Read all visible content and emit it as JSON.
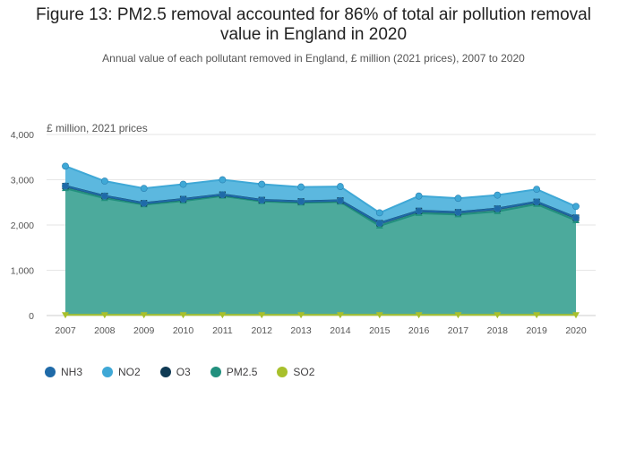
{
  "chart_data": {
    "type": "area",
    "title": "Figure 13: PM2.5 removal accounted for 86% of total air pollution removal value in England in 2020",
    "subtitle": "Annual value of each pollutant removed in England, £ million (2021 prices), 2007 to 2020",
    "ylabel": "£ million, 2021 prices",
    "xlabel": "",
    "stacked": true,
    "ylim": [
      0,
      4000
    ],
    "yticks": [
      0,
      1000,
      2000,
      3000,
      4000
    ],
    "ytick_labels": [
      "0",
      "1,000",
      "2,000",
      "3,000",
      "4,000"
    ],
    "categories": [
      "2007",
      "2008",
      "2009",
      "2010",
      "2011",
      "2012",
      "2013",
      "2014",
      "2015",
      "2016",
      "2017",
      "2018",
      "2019",
      "2020"
    ],
    "series": [
      {
        "name": "SO2",
        "color": "#a8c02c",
        "marker": "triangle-down",
        "cumulative": [
          15,
          15,
          15,
          15,
          15,
          15,
          15,
          15,
          15,
          15,
          15,
          15,
          15,
          15
        ]
      },
      {
        "name": "PM2.5",
        "color": "#22907e",
        "marker": "triangle-up",
        "cumulative": [
          2810,
          2590,
          2450,
          2530,
          2640,
          2520,
          2490,
          2510,
          1980,
          2260,
          2230,
          2300,
          2460,
          2100
        ]
      },
      {
        "name": "O3",
        "color": "#0f3a54",
        "marker": "square",
        "cumulative": [
          2860,
          2640,
          2480,
          2570,
          2670,
          2550,
          2520,
          2540,
          2040,
          2310,
          2280,
          2360,
          2510,
          2160
        ]
      },
      {
        "name": "NH3",
        "color": "#1f6aa8",
        "marker": "circle",
        "cumulative": [
          2860,
          2640,
          2480,
          2570,
          2670,
          2550,
          2520,
          2540,
          2040,
          2310,
          2280,
          2360,
          2510,
          2160
        ]
      },
      {
        "name": "NO2",
        "color": "#3fa8d6",
        "marker": "circle",
        "cumulative": [
          3300,
          2970,
          2810,
          2900,
          3000,
          2900,
          2840,
          2850,
          2270,
          2640,
          2590,
          2660,
          2790,
          2410
        ]
      }
    ],
    "legend": {
      "position": "bottom-left",
      "items": [
        {
          "name": "NH3",
          "color": "#1f6aa8"
        },
        {
          "name": "NO2",
          "color": "#3fa8d6"
        },
        {
          "name": "O3",
          "color": "#0f3a54"
        },
        {
          "name": "PM2.5",
          "color": "#22907e"
        },
        {
          "name": "SO2",
          "color": "#a8c02c"
        }
      ]
    }
  }
}
